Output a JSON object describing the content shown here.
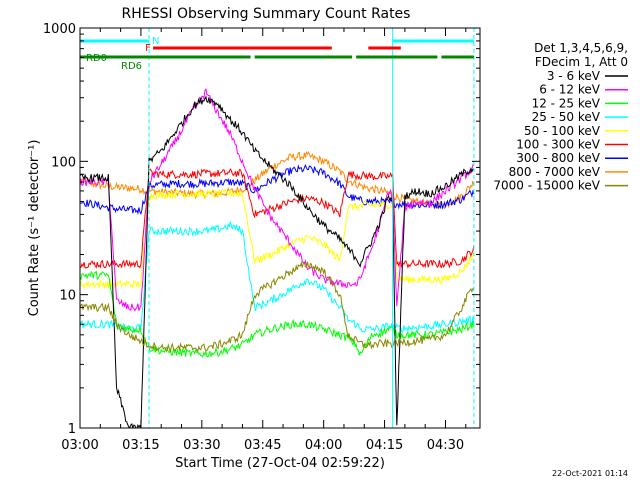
{
  "chart_data": {
    "type": "line",
    "title": "RHESSI Observing Summary Count Rates",
    "xlabel": "Start Time (27-Oct-04 02:59:22)",
    "ylabel": "Count Rate (s⁻¹ detector⁻¹)",
    "yscale": "log",
    "xlim": [
      "03:00",
      "04:38"
    ],
    "ylim": [
      1,
      1000
    ],
    "x_ticks": [
      {
        "label": "03:00",
        "t": 0
      },
      {
        "label": "03:15",
        "t": 15
      },
      {
        "label": "03:30",
        "t": 30
      },
      {
        "label": "03:45",
        "t": 45
      },
      {
        "label": "04:00",
        "t": 60
      },
      {
        "label": "04:15",
        "t": 75
      },
      {
        "label": "04:30",
        "t": 90
      }
    ],
    "y_ticks": [
      {
        "label": "1",
        "v": 1
      },
      {
        "label": "10",
        "v": 10
      },
      {
        "label": "100",
        "v": 100
      },
      {
        "label": "1000",
        "v": 1000
      }
    ],
    "legend_header": [
      "Det 1,3,4,5,6,9,",
      "FDecim 1, Att 0"
    ],
    "legend_position": "right",
    "footer_timestamp": "22-Oct-2021 01:14",
    "series": [
      {
        "name": "3 - 6 keV",
        "color": "#000000",
        "x": [
          0,
          7,
          9,
          12,
          15,
          17,
          20,
          24,
          28,
          31,
          34,
          37,
          40,
          43,
          47,
          52,
          56,
          60,
          64,
          66,
          68,
          69,
          70,
          72,
          74,
          76,
          77,
          78,
          80,
          83,
          86,
          90,
          94,
          97
        ],
        "y": [
          75,
          75,
          2,
          1,
          1,
          100,
          120,
          175,
          260,
          300,
          270,
          205,
          165,
          120,
          90,
          65,
          45,
          33,
          26,
          22,
          19,
          17,
          20,
          26,
          36,
          55,
          48,
          1,
          55,
          60,
          57,
          65,
          80,
          90
        ]
      },
      {
        "name": "6 - 12 keV",
        "color": "#ff00ff",
        "x": [
          0,
          7,
          9,
          12,
          15,
          17,
          20,
          24,
          28,
          31,
          34,
          37,
          40,
          43,
          47,
          52,
          56,
          60,
          64,
          66,
          68,
          69,
          70,
          72,
          74,
          76,
          77,
          78,
          80,
          83,
          86,
          90,
          94,
          97
        ],
        "y": [
          70,
          70,
          9,
          8,
          8,
          70,
          95,
          150,
          250,
          330,
          230,
          160,
          100,
          62,
          38,
          24,
          16,
          13,
          12,
          12,
          12,
          13,
          16,
          23,
          35,
          60,
          55,
          8,
          45,
          50,
          48,
          60,
          75,
          90
        ]
      },
      {
        "name": "12 - 25 keV",
        "color": "#00ff00",
        "x": [
          0,
          7,
          9,
          12,
          15,
          17,
          20,
          24,
          28,
          31,
          34,
          37,
          40,
          43,
          47,
          52,
          56,
          60,
          64,
          66,
          68,
          69,
          70,
          72,
          74,
          76,
          77,
          78,
          80,
          83,
          86,
          90,
          94,
          97
        ],
        "y": [
          14,
          14,
          6,
          5.5,
          5.5,
          4,
          3.8,
          3.7,
          3.6,
          3.6,
          3.7,
          3.9,
          4.2,
          5,
          5.5,
          6,
          6,
          5.5,
          5,
          4.7,
          4.2,
          3.5,
          4,
          5,
          5.2,
          5.5,
          5.5,
          5,
          5,
          5,
          5,
          5.2,
          5.5,
          6
        ]
      },
      {
        "name": "25 - 50 keV",
        "color": "#00ffff",
        "x": [
          0,
          7,
          9,
          12,
          15,
          17,
          20,
          24,
          28,
          31,
          34,
          37,
          40,
          43,
          47,
          52,
          56,
          60,
          64,
          66,
          68,
          69,
          70,
          72,
          74,
          76,
          77,
          78,
          80,
          83,
          86,
          90,
          94,
          97
        ],
        "y": [
          6,
          6,
          5.8,
          5.6,
          5.6,
          30,
          30,
          30,
          30,
          30,
          31,
          33,
          30,
          8,
          9,
          11,
          13,
          11,
          8,
          6.5,
          6,
          5.5,
          5.5,
          5.5,
          5.6,
          5.8,
          5.8,
          5.6,
          5.6,
          5.7,
          5.8,
          6,
          6.3,
          6.5
        ]
      },
      {
        "name": "50 - 100 keV",
        "color": "#ffff00",
        "x": [
          0,
          7,
          9,
          12,
          15,
          17,
          20,
          24,
          28,
          31,
          34,
          37,
          40,
          43,
          47,
          52,
          56,
          60,
          64,
          66,
          68,
          69,
          70,
          72,
          74,
          76,
          77,
          78,
          80,
          83,
          86,
          90,
          94,
          97
        ],
        "y": [
          12,
          12,
          12,
          12,
          12,
          55,
          56,
          57,
          57,
          57,
          57,
          58,
          57,
          18,
          20,
          24,
          27,
          24,
          18,
          45,
          46,
          46,
          47,
          47,
          47,
          47,
          47,
          13,
          13,
          13,
          13,
          13,
          15,
          20
        ]
      },
      {
        "name": "100 - 300 keV",
        "color": "#ff0000",
        "x": [
          0,
          7,
          9,
          12,
          15,
          17,
          20,
          24,
          28,
          31,
          34,
          37,
          40,
          43,
          47,
          52,
          56,
          60,
          64,
          66,
          68,
          69,
          70,
          72,
          74,
          76,
          77,
          78,
          80,
          83,
          86,
          90,
          94,
          97
        ],
        "y": [
          17,
          17,
          17,
          17,
          17,
          82,
          80,
          80,
          80,
          81,
          81,
          82,
          81,
          40,
          44,
          50,
          53,
          49,
          40,
          80,
          79,
          78,
          78,
          77,
          77,
          77,
          77,
          17,
          17,
          17,
          17,
          17,
          18,
          22
        ]
      },
      {
        "name": "300 - 800 keV",
        "color": "#0000ff",
        "x": [
          0,
          7,
          9,
          12,
          15,
          17,
          20,
          24,
          28,
          31,
          34,
          37,
          40,
          43,
          47,
          52,
          56,
          60,
          64,
          66,
          68,
          69,
          70,
          72,
          74,
          76,
          77,
          78,
          80,
          83,
          86,
          90,
          94,
          97
        ],
        "y": [
          50,
          45,
          44,
          43,
          43,
          66,
          67,
          68,
          68,
          68,
          69,
          70,
          68,
          60,
          72,
          85,
          88,
          82,
          68,
          55,
          52,
          51,
          50,
          50,
          50,
          49,
          49,
          48,
          48,
          47,
          47,
          48,
          52,
          60
        ]
      },
      {
        "name": "800 - 7000 keV",
        "color": "#ff8800",
        "x": [
          0,
          7,
          9,
          12,
          15,
          17,
          20,
          24,
          28,
          31,
          34,
          37,
          40,
          43,
          47,
          52,
          56,
          60,
          64,
          66,
          68,
          69,
          70,
          72,
          74,
          76,
          77,
          78,
          80,
          83,
          86,
          90,
          94,
          97
        ],
        "y": [
          70,
          65,
          64,
          63,
          62,
          60,
          59,
          58,
          57,
          57,
          57,
          59,
          62,
          72,
          90,
          108,
          110,
          100,
          84,
          72,
          68,
          66,
          64,
          62,
          60,
          58,
          56,
          54,
          52,
          50,
          48,
          47,
          55,
          70
        ]
      },
      {
        "name": "7000 - 15000 keV",
        "color": "#888800",
        "x": [
          0,
          7,
          9,
          12,
          15,
          17,
          20,
          24,
          28,
          31,
          34,
          37,
          40,
          43,
          47,
          52,
          56,
          60,
          64,
          66,
          68,
          69,
          70,
          72,
          74,
          76,
          77,
          78,
          80,
          83,
          86,
          90,
          94,
          97
        ],
        "y": [
          8,
          8,
          6,
          5,
          4.5,
          4.2,
          4,
          4,
          4,
          4,
          4.2,
          4.5,
          5,
          10,
          12,
          15,
          17,
          15,
          10,
          5,
          4.5,
          4.3,
          4.2,
          4.2,
          4.3,
          4.3,
          4.3,
          4.4,
          4.4,
          4.5,
          4.6,
          5,
          8,
          12
        ]
      }
    ],
    "state_bars": [
      {
        "label": "N",
        "color": "#00ffff",
        "segments": [
          [
            0,
            17
          ],
          [
            77,
            97
          ]
        ]
      },
      {
        "label": "F",
        "color": "#ff0000",
        "segments": [
          [
            18,
            62
          ],
          [
            71,
            79
          ]
        ]
      },
      {
        "label": "",
        "color": "#008800",
        "segments": [
          [
            0,
            42
          ],
          [
            43,
            67
          ],
          [
            68,
            88
          ],
          [
            89,
            97
          ]
        ]
      }
    ],
    "state_labels": [
      {
        "text": "RD0",
        "color": "#008800"
      },
      {
        "text": "RD6",
        "color": "#008800"
      }
    ],
    "marker_lines": [
      {
        "t": 0,
        "style": "solid",
        "color": "#00ffff"
      },
      {
        "t": 17,
        "style": "dashed",
        "color": "#00ffff"
      },
      {
        "t": 77,
        "style": "solid",
        "color": "#00ffff"
      },
      {
        "t": 97,
        "style": "dashed",
        "color": "#00ffff"
      }
    ]
  }
}
